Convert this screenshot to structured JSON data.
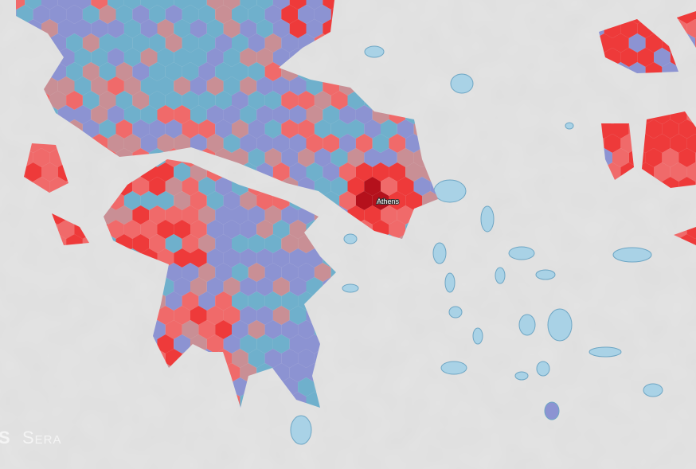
{
  "map": {
    "city_label": "Athens"
  },
  "watermark": {
    "fragment": "S",
    "text": "Sera"
  }
}
